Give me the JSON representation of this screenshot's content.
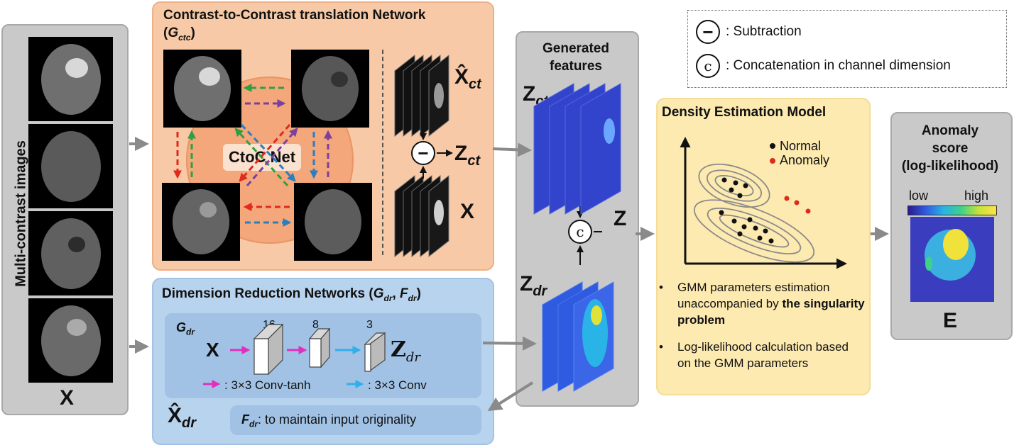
{
  "input_panel": {
    "vertical_label": "Multi-contrast images",
    "x_label": "X"
  },
  "ctoc_panel": {
    "title": "Contrast-to-Contrast translation Network",
    "subtitle_g": "G",
    "subtitle_sub": "ctc",
    "center_label": "CtoC Net",
    "xhat_ct": "X̂",
    "xhat_ct_sub": "ct",
    "z_ct": "Z",
    "z_ct_sub": "ct",
    "x": "X",
    "minus_symbol": "−"
  },
  "dr_panel": {
    "title": "Dimension Reduction Networks (",
    "title_g": "G",
    "title_g_sub": "dr",
    "title_f": "F",
    "title_f_sub": "dr",
    "gdr_label": "G",
    "gdr_sub": "dr",
    "x": "X",
    "ch16": "16",
    "ch8": "8",
    "ch3": "3",
    "z_dr": "Z",
    "z_dr_sub": "dr",
    "legend_tanh": ": 3×3 Conv-tanh",
    "legend_conv": ": 3×3 Conv",
    "xhat_dr": "X̂",
    "xhat_dr_sub": "dr",
    "fdr_label": "F",
    "fdr_sub": "dr",
    "fdr_text": ": to maintain input originality"
  },
  "generated_panel": {
    "title_line1": "Generated",
    "title_line2": "features",
    "z_ct": "Z",
    "z_ct_sub": "ct",
    "z_dr": "Z",
    "z_dr_sub": "dr",
    "concat_symbol": "c",
    "z": "Z"
  },
  "legend": {
    "subtraction_symbol": "−",
    "subtraction_text": ": Subtraction",
    "concat_symbol": "c",
    "concat_text": ": Concatenation in channel dimension"
  },
  "density_panel": {
    "title": "Density Estimation Model",
    "legend_normal": "Normal",
    "legend_anomaly": "Anomaly",
    "bullet1_a": "GMM parameters estimation unaccompanied by ",
    "bullet1_b": "the singularity problem",
    "bullet2": "Log-likelihood calculation based on the GMM parameters"
  },
  "anomaly_panel": {
    "title_line1": "Anomaly",
    "title_line2": "score",
    "title_line3": "(log-likelihood)",
    "low": "low",
    "high": "high",
    "e_label": "E"
  },
  "colors": {
    "green_arrow": "#2ea043",
    "purple_arrow": "#7b3fa0",
    "red_arrow": "#e02a1b",
    "blue_arrow": "#2a7fc0",
    "magenta_arrow": "#e030c0",
    "cyan_arrow": "#30b0e8",
    "feature_blue": "#3344cc"
  }
}
